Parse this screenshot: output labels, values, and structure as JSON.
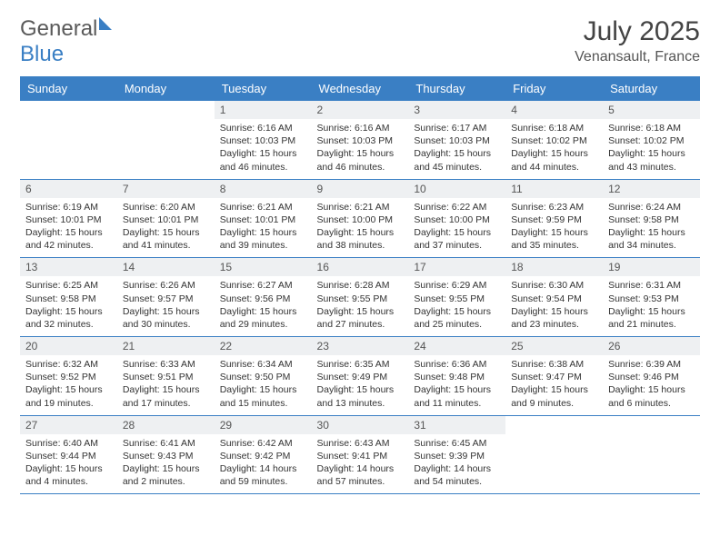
{
  "logo": {
    "general": "General",
    "blue": "Blue"
  },
  "title": "July 2025",
  "location": "Venansault, France",
  "colors": {
    "header_bg": "#3a7fc4",
    "header_fg": "#ffffff",
    "daynum_bg": "#eef0f2",
    "border": "#3a7fc4",
    "text": "#333333"
  },
  "day_headers": [
    "Sunday",
    "Monday",
    "Tuesday",
    "Wednesday",
    "Thursday",
    "Friday",
    "Saturday"
  ],
  "weeks": [
    [
      {
        "n": "",
        "sr": "",
        "ss": "",
        "dl": ""
      },
      {
        "n": "",
        "sr": "",
        "ss": "",
        "dl": ""
      },
      {
        "n": "1",
        "sr": "Sunrise: 6:16 AM",
        "ss": "Sunset: 10:03 PM",
        "dl": "Daylight: 15 hours and 46 minutes."
      },
      {
        "n": "2",
        "sr": "Sunrise: 6:16 AM",
        "ss": "Sunset: 10:03 PM",
        "dl": "Daylight: 15 hours and 46 minutes."
      },
      {
        "n": "3",
        "sr": "Sunrise: 6:17 AM",
        "ss": "Sunset: 10:03 PM",
        "dl": "Daylight: 15 hours and 45 minutes."
      },
      {
        "n": "4",
        "sr": "Sunrise: 6:18 AM",
        "ss": "Sunset: 10:02 PM",
        "dl": "Daylight: 15 hours and 44 minutes."
      },
      {
        "n": "5",
        "sr": "Sunrise: 6:18 AM",
        "ss": "Sunset: 10:02 PM",
        "dl": "Daylight: 15 hours and 43 minutes."
      }
    ],
    [
      {
        "n": "6",
        "sr": "Sunrise: 6:19 AM",
        "ss": "Sunset: 10:01 PM",
        "dl": "Daylight: 15 hours and 42 minutes."
      },
      {
        "n": "7",
        "sr": "Sunrise: 6:20 AM",
        "ss": "Sunset: 10:01 PM",
        "dl": "Daylight: 15 hours and 41 minutes."
      },
      {
        "n": "8",
        "sr": "Sunrise: 6:21 AM",
        "ss": "Sunset: 10:01 PM",
        "dl": "Daylight: 15 hours and 39 minutes."
      },
      {
        "n": "9",
        "sr": "Sunrise: 6:21 AM",
        "ss": "Sunset: 10:00 PM",
        "dl": "Daylight: 15 hours and 38 minutes."
      },
      {
        "n": "10",
        "sr": "Sunrise: 6:22 AM",
        "ss": "Sunset: 10:00 PM",
        "dl": "Daylight: 15 hours and 37 minutes."
      },
      {
        "n": "11",
        "sr": "Sunrise: 6:23 AM",
        "ss": "Sunset: 9:59 PM",
        "dl": "Daylight: 15 hours and 35 minutes."
      },
      {
        "n": "12",
        "sr": "Sunrise: 6:24 AM",
        "ss": "Sunset: 9:58 PM",
        "dl": "Daylight: 15 hours and 34 minutes."
      }
    ],
    [
      {
        "n": "13",
        "sr": "Sunrise: 6:25 AM",
        "ss": "Sunset: 9:58 PM",
        "dl": "Daylight: 15 hours and 32 minutes."
      },
      {
        "n": "14",
        "sr": "Sunrise: 6:26 AM",
        "ss": "Sunset: 9:57 PM",
        "dl": "Daylight: 15 hours and 30 minutes."
      },
      {
        "n": "15",
        "sr": "Sunrise: 6:27 AM",
        "ss": "Sunset: 9:56 PM",
        "dl": "Daylight: 15 hours and 29 minutes."
      },
      {
        "n": "16",
        "sr": "Sunrise: 6:28 AM",
        "ss": "Sunset: 9:55 PM",
        "dl": "Daylight: 15 hours and 27 minutes."
      },
      {
        "n": "17",
        "sr": "Sunrise: 6:29 AM",
        "ss": "Sunset: 9:55 PM",
        "dl": "Daylight: 15 hours and 25 minutes."
      },
      {
        "n": "18",
        "sr": "Sunrise: 6:30 AM",
        "ss": "Sunset: 9:54 PM",
        "dl": "Daylight: 15 hours and 23 minutes."
      },
      {
        "n": "19",
        "sr": "Sunrise: 6:31 AM",
        "ss": "Sunset: 9:53 PM",
        "dl": "Daylight: 15 hours and 21 minutes."
      }
    ],
    [
      {
        "n": "20",
        "sr": "Sunrise: 6:32 AM",
        "ss": "Sunset: 9:52 PM",
        "dl": "Daylight: 15 hours and 19 minutes."
      },
      {
        "n": "21",
        "sr": "Sunrise: 6:33 AM",
        "ss": "Sunset: 9:51 PM",
        "dl": "Daylight: 15 hours and 17 minutes."
      },
      {
        "n": "22",
        "sr": "Sunrise: 6:34 AM",
        "ss": "Sunset: 9:50 PM",
        "dl": "Daylight: 15 hours and 15 minutes."
      },
      {
        "n": "23",
        "sr": "Sunrise: 6:35 AM",
        "ss": "Sunset: 9:49 PM",
        "dl": "Daylight: 15 hours and 13 minutes."
      },
      {
        "n": "24",
        "sr": "Sunrise: 6:36 AM",
        "ss": "Sunset: 9:48 PM",
        "dl": "Daylight: 15 hours and 11 minutes."
      },
      {
        "n": "25",
        "sr": "Sunrise: 6:38 AM",
        "ss": "Sunset: 9:47 PM",
        "dl": "Daylight: 15 hours and 9 minutes."
      },
      {
        "n": "26",
        "sr": "Sunrise: 6:39 AM",
        "ss": "Sunset: 9:46 PM",
        "dl": "Daylight: 15 hours and 6 minutes."
      }
    ],
    [
      {
        "n": "27",
        "sr": "Sunrise: 6:40 AM",
        "ss": "Sunset: 9:44 PM",
        "dl": "Daylight: 15 hours and 4 minutes."
      },
      {
        "n": "28",
        "sr": "Sunrise: 6:41 AM",
        "ss": "Sunset: 9:43 PM",
        "dl": "Daylight: 15 hours and 2 minutes."
      },
      {
        "n": "29",
        "sr": "Sunrise: 6:42 AM",
        "ss": "Sunset: 9:42 PM",
        "dl": "Daylight: 14 hours and 59 minutes."
      },
      {
        "n": "30",
        "sr": "Sunrise: 6:43 AM",
        "ss": "Sunset: 9:41 PM",
        "dl": "Daylight: 14 hours and 57 minutes."
      },
      {
        "n": "31",
        "sr": "Sunrise: 6:45 AM",
        "ss": "Sunset: 9:39 PM",
        "dl": "Daylight: 14 hours and 54 minutes."
      },
      {
        "n": "",
        "sr": "",
        "ss": "",
        "dl": ""
      },
      {
        "n": "",
        "sr": "",
        "ss": "",
        "dl": ""
      }
    ]
  ]
}
